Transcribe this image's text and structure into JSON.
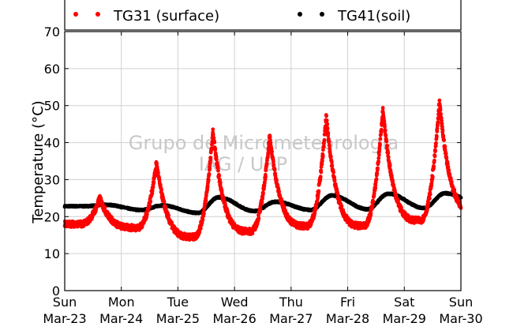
{
  "chart_data": {
    "type": "scatter",
    "title": "",
    "ylabel": "Temperature (°C)",
    "xlabel": "",
    "ylim": [
      0,
      70
    ],
    "yticks": [
      0,
      10,
      20,
      30,
      40,
      50,
      60,
      70
    ],
    "xlim_days": [
      0,
      7
    ],
    "grid": true,
    "legend_position": "top",
    "watermark": [
      "Grupo de Micrometeorologia",
      "IAG / USP"
    ],
    "xticks": [
      {
        "day": 0,
        "weekday": "Sun",
        "date": "Mar-23"
      },
      {
        "day": 1,
        "weekday": "Mon",
        "date": "Mar-24"
      },
      {
        "day": 2,
        "weekday": "Tue",
        "date": "Mar-25"
      },
      {
        "day": 3,
        "weekday": "Wed",
        "date": "Mar-26"
      },
      {
        "day": 4,
        "weekday": "Thu",
        "date": "Mar-27"
      },
      {
        "day": 5,
        "weekday": "Fri",
        "date": "Mar-28"
      },
      {
        "day": 6,
        "weekday": "Sat",
        "date": "Mar-29"
      },
      {
        "day": 7,
        "weekday": "Sun",
        "date": "Mar-30"
      }
    ],
    "series": [
      {
        "name": "TG31 (surface)",
        "color": "#ff0000",
        "daily_min": [
          18.0,
          17.0,
          14.5,
          16.0,
          17.5,
          17.5,
          19.0,
          21.5
        ],
        "daily_max": [
          25.0,
          34.5,
          43.0,
          42.0,
          47.0,
          49.0,
          51.0
        ]
      },
      {
        "name": "TG41(soil)",
        "color": "#000000",
        "daily_min": [
          22.8,
          21.8,
          21.0,
          21.5,
          21.8,
          22.0,
          22.3,
          23.5
        ],
        "daily_max": [
          23.2,
          23.0,
          25.2,
          24.0,
          25.7,
          26.2,
          26.3
        ]
      }
    ]
  }
}
